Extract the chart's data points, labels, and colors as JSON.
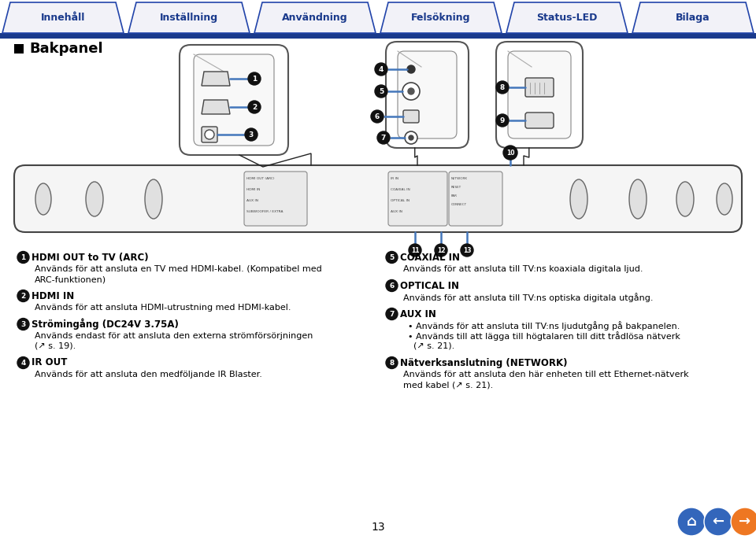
{
  "tab_labels": [
    "Innehåll",
    "Inställning",
    "Användning",
    "Felsökning",
    "Status-LED",
    "Bilaga"
  ],
  "tab_bar_color": "#1a3a8c",
  "tab_fill_color": "#f2f2f8",
  "tab_border_color": "#2244aa",
  "section_title": "Bakpanel",
  "bg_color": "#ffffff",
  "text_color": "#000000",
  "dark_blue": "#1a3a8c",
  "medium_blue": "#4477bb",
  "left_col_items": [
    {
      "num": "1",
      "title": "HDMI OUT to TV (ARC)",
      "lines": [
        "Används för att ansluta en TV med HDMI-kabel. (Kompatibel med",
        "ARC-funktionen)"
      ]
    },
    {
      "num": "2",
      "title": "HDMI IN",
      "lines": [
        "Används för att ansluta HDMI-utrustning med HDMI-kabel."
      ]
    },
    {
      "num": "3",
      "title": "Strömingång (DC24V 3.75A)",
      "lines": [
        "Används endast för att ansluta den externa strömförsörjningen",
        "(↗ s. 19)."
      ]
    },
    {
      "num": "4",
      "title": "IR OUT",
      "lines": [
        "Används för att ansluta den medföljande IR Blaster."
      ]
    }
  ],
  "right_col_items": [
    {
      "num": "5",
      "title": "COAXIAL IN",
      "lines": [
        "Används för att ansluta till TV:ns koaxiala digitala ljud."
      ]
    },
    {
      "num": "6",
      "title": "OPTICAL IN",
      "lines": [
        "Används för att ansluta till TV:ns optiska digitala utgång."
      ]
    },
    {
      "num": "7",
      "title": "AUX IN",
      "bullet_lines": [
        "Används för att ansluta till TV:ns ljudutgång på bakpanelen.",
        "Används till att lägga till högtalaren till ditt trådlösa nätverk",
        "(↗ s. 21)."
      ]
    },
    {
      "num": "8",
      "title": "Nätverksanslutning (NETWORK)",
      "lines": [
        "Används för att ansluta den här enheten till ett Ethernet-nätverk",
        "med kabel (↗ s. 21)."
      ]
    }
  ],
  "page_number": "13"
}
